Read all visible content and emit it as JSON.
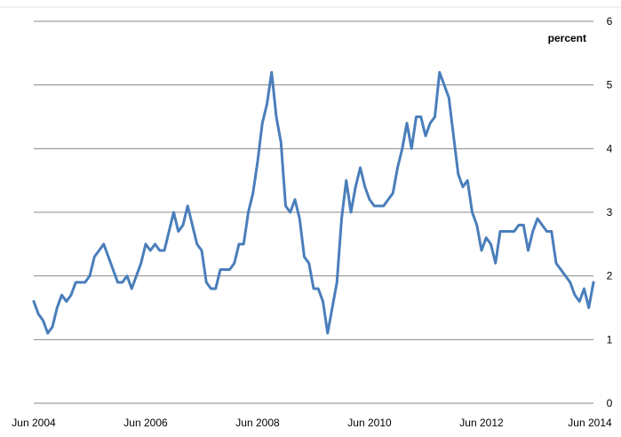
{
  "chart_data": {
    "type": "line",
    "title": "",
    "xlabel": "",
    "ylabel": "percent",
    "ylim": [
      0,
      6
    ],
    "yticks": [
      "0",
      "1",
      "2",
      "3",
      "4",
      "5",
      "6"
    ],
    "xticks": [
      "Jun 2004",
      "Jun 2006",
      "Jun 2008",
      "Jun 2010",
      "Jun 2012",
      "Jun 2014"
    ],
    "grid": true,
    "y_axis_side": "right",
    "line_color": "#4a7ebb",
    "start": "Jun 2004",
    "end": "Jun 2014",
    "frequency": "monthly",
    "series": [
      {
        "values": [
          1.6,
          1.4,
          1.3,
          1.1,
          1.2,
          1.5,
          1.7,
          1.6,
          1.7,
          1.9,
          1.9,
          1.9,
          2.0,
          2.3,
          2.4,
          2.5,
          2.3,
          2.1,
          1.9,
          1.9,
          2.0,
          1.8,
          2.0,
          2.2,
          2.5,
          2.4,
          2.5,
          2.4,
          2.4,
          2.7,
          3.0,
          2.7,
          2.8,
          3.1,
          2.8,
          2.5,
          2.4,
          1.9,
          1.8,
          1.8,
          2.1,
          2.1,
          2.1,
          2.2,
          2.5,
          2.5,
          3.0,
          3.3,
          3.8,
          4.4,
          4.7,
          5.2,
          4.5,
          4.1,
          3.1,
          3.0,
          3.2,
          2.9,
          2.3,
          2.2,
          1.8,
          1.8,
          1.6,
          1.1,
          1.5,
          1.9,
          2.9,
          3.5,
          3.0,
          3.4,
          3.7,
          3.4,
          3.2,
          3.1,
          3.1,
          3.1,
          3.2,
          3.3,
          3.7,
          4.0,
          4.4,
          4.0,
          4.5,
          4.5,
          4.2,
          4.4,
          4.5,
          5.2,
          5.0,
          4.8,
          4.2,
          3.6,
          3.4,
          3.5,
          3.0,
          2.8,
          2.4,
          2.6,
          2.5,
          2.2,
          2.7,
          2.7,
          2.7,
          2.7,
          2.8,
          2.8,
          2.4,
          2.7,
          2.9,
          2.8,
          2.7,
          2.7,
          2.2,
          2.1,
          2.0,
          1.9,
          1.7,
          1.6,
          1.8,
          1.5,
          1.9
        ]
      }
    ]
  }
}
